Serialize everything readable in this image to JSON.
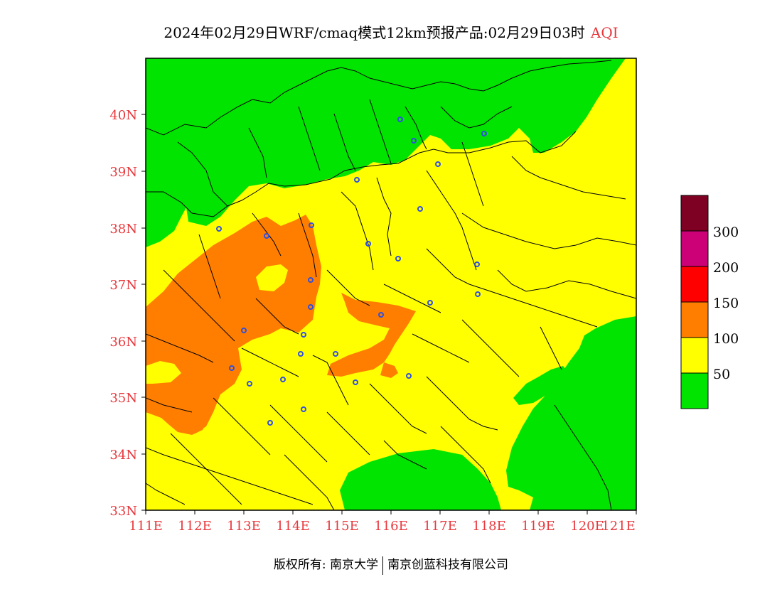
{
  "title": {
    "main": "2024年02月29日WRF/cmaq模式12km预报产品:02月29日03时",
    "product": "AQI"
  },
  "map": {
    "x_ticks": [
      "111E",
      "112E",
      "113E",
      "114E",
      "115E",
      "116E",
      "117E",
      "118E",
      "119E",
      "120E",
      "121E"
    ],
    "y_ticks": [
      "40N",
      "39N",
      "38N",
      "37N",
      "36N",
      "35N",
      "34N",
      "33N"
    ],
    "colors": {
      "good": "#00e400",
      "moderate": "#ffff00",
      "usg": "#ff7e00",
      "unhealthy": "#ff0000",
      "very_unhealthy": "#cc0077",
      "hazardous": "#7e0023",
      "city_marker": "#3050e0",
      "boundary": "#000000"
    }
  },
  "colorbar": {
    "labels": [
      "300",
      "200",
      "150",
      "100",
      "50"
    ]
  },
  "footer": {
    "owner": "版权所有: 南京大学",
    "company": "南京创蓝科技有限公司"
  }
}
